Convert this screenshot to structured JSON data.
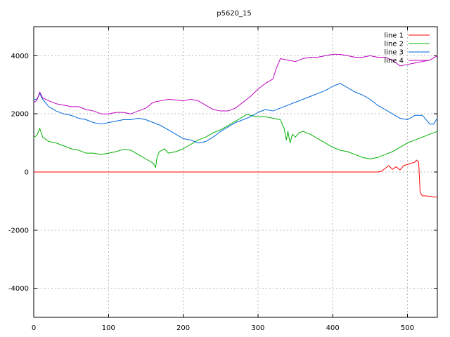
{
  "chart_data": {
    "type": "line",
    "title": "p5620_15",
    "xlabel": "",
    "ylabel": "",
    "xlim": [
      0,
      540
    ],
    "ylim": [
      -5000,
      5000
    ],
    "x_ticks": [
      0,
      100,
      200,
      300,
      400,
      500
    ],
    "y_ticks": [
      -4000,
      -2000,
      0,
      2000,
      4000
    ],
    "grid": true,
    "legend_position": "top-right",
    "series": [
      {
        "name": "line 1",
        "color": "#ff0000",
        "points": [
          [
            0,
            0
          ],
          [
            460,
            0
          ],
          [
            465,
            20
          ],
          [
            470,
            120
          ],
          [
            475,
            220
          ],
          [
            480,
            90
          ],
          [
            485,
            180
          ],
          [
            490,
            70
          ],
          [
            495,
            220
          ],
          [
            500,
            260
          ],
          [
            505,
            300
          ],
          [
            510,
            340
          ],
          [
            512,
            410
          ],
          [
            515,
            350
          ],
          [
            517,
            -700
          ],
          [
            520,
            -820
          ],
          [
            525,
            -820
          ],
          [
            530,
            -840
          ],
          [
            535,
            -860
          ],
          [
            540,
            -860
          ]
        ]
      },
      {
        "name": "line 2",
        "color": "#00b000",
        "points": [
          [
            0,
            1200
          ],
          [
            4,
            1250
          ],
          [
            8,
            1500
          ],
          [
            12,
            1200
          ],
          [
            20,
            1050
          ],
          [
            30,
            1000
          ],
          [
            40,
            900
          ],
          [
            50,
            800
          ],
          [
            60,
            750
          ],
          [
            70,
            650
          ],
          [
            80,
            650
          ],
          [
            90,
            600
          ],
          [
            100,
            650
          ],
          [
            110,
            700
          ],
          [
            120,
            780
          ],
          [
            130,
            750
          ],
          [
            140,
            600
          ],
          [
            150,
            450
          ],
          [
            160,
            300
          ],
          [
            163,
            150
          ],
          [
            165,
            500
          ],
          [
            168,
            700
          ],
          [
            175,
            800
          ],
          [
            180,
            650
          ],
          [
            190,
            700
          ],
          [
            200,
            800
          ],
          [
            210,
            950
          ],
          [
            220,
            1100
          ],
          [
            230,
            1200
          ],
          [
            240,
            1350
          ],
          [
            250,
            1450
          ],
          [
            260,
            1600
          ],
          [
            270,
            1750
          ],
          [
            280,
            1900
          ],
          [
            285,
            1980
          ],
          [
            290,
            1950
          ],
          [
            300,
            1900
          ],
          [
            310,
            1900
          ],
          [
            320,
            1850
          ],
          [
            330,
            1800
          ],
          [
            335,
            1500
          ],
          [
            338,
            1100
          ],
          [
            340,
            1400
          ],
          [
            343,
            1000
          ],
          [
            346,
            1300
          ],
          [
            350,
            1200
          ],
          [
            355,
            1350
          ],
          [
            360,
            1400
          ],
          [
            370,
            1300
          ],
          [
            380,
            1150
          ],
          [
            390,
            1000
          ],
          [
            400,
            850
          ],
          [
            410,
            750
          ],
          [
            420,
            700
          ],
          [
            430,
            600
          ],
          [
            440,
            500
          ],
          [
            450,
            450
          ],
          [
            460,
            500
          ],
          [
            470,
            600
          ],
          [
            480,
            700
          ],
          [
            490,
            850
          ],
          [
            500,
            1000
          ],
          [
            510,
            1100
          ],
          [
            520,
            1200
          ],
          [
            530,
            1300
          ],
          [
            540,
            1400
          ]
        ]
      },
      {
        "name": "line 3",
        "color": "#0066dd",
        "points": [
          [
            0,
            2500
          ],
          [
            4,
            2500
          ],
          [
            8,
            2700
          ],
          [
            12,
            2500
          ],
          [
            20,
            2250
          ],
          [
            30,
            2100
          ],
          [
            40,
            2000
          ],
          [
            50,
            1950
          ],
          [
            60,
            1850
          ],
          [
            70,
            1800
          ],
          [
            80,
            1700
          ],
          [
            90,
            1650
          ],
          [
            100,
            1700
          ],
          [
            110,
            1750
          ],
          [
            120,
            1800
          ],
          [
            130,
            1800
          ],
          [
            140,
            1850
          ],
          [
            150,
            1800
          ],
          [
            160,
            1700
          ],
          [
            170,
            1600
          ],
          [
            180,
            1450
          ],
          [
            190,
            1300
          ],
          [
            200,
            1150
          ],
          [
            210,
            1100
          ],
          [
            220,
            1000
          ],
          [
            230,
            1050
          ],
          [
            240,
            1200
          ],
          [
            250,
            1400
          ],
          [
            260,
            1550
          ],
          [
            270,
            1700
          ],
          [
            280,
            1800
          ],
          [
            290,
            1900
          ],
          [
            300,
            2050
          ],
          [
            310,
            2150
          ],
          [
            320,
            2100
          ],
          [
            330,
            2200
          ],
          [
            340,
            2300
          ],
          [
            350,
            2400
          ],
          [
            360,
            2500
          ],
          [
            370,
            2600
          ],
          [
            380,
            2700
          ],
          [
            390,
            2800
          ],
          [
            400,
            2950
          ],
          [
            410,
            3050
          ],
          [
            420,
            2900
          ],
          [
            430,
            2750
          ],
          [
            440,
            2650
          ],
          [
            450,
            2500
          ],
          [
            460,
            2300
          ],
          [
            470,
            2150
          ],
          [
            480,
            2000
          ],
          [
            490,
            1850
          ],
          [
            500,
            1800
          ],
          [
            510,
            1950
          ],
          [
            520,
            1950
          ],
          [
            525,
            1800
          ],
          [
            530,
            1650
          ],
          [
            535,
            1650
          ],
          [
            540,
            1850
          ]
        ]
      },
      {
        "name": "line 4",
        "color": "#c000c0",
        "points": [
          [
            0,
            2400
          ],
          [
            4,
            2450
          ],
          [
            8,
            2750
          ],
          [
            12,
            2550
          ],
          [
            20,
            2450
          ],
          [
            30,
            2350
          ],
          [
            40,
            2300
          ],
          [
            50,
            2250
          ],
          [
            60,
            2250
          ],
          [
            70,
            2150
          ],
          [
            80,
            2100
          ],
          [
            90,
            2000
          ],
          [
            100,
            2000
          ],
          [
            110,
            2050
          ],
          [
            120,
            2050
          ],
          [
            130,
            2000
          ],
          [
            140,
            2100
          ],
          [
            150,
            2200
          ],
          [
            160,
            2400
          ],
          [
            170,
            2450
          ],
          [
            180,
            2500
          ],
          [
            190,
            2480
          ],
          [
            200,
            2450
          ],
          [
            210,
            2500
          ],
          [
            220,
            2450
          ],
          [
            230,
            2300
          ],
          [
            240,
            2150
          ],
          [
            250,
            2100
          ],
          [
            260,
            2100
          ],
          [
            270,
            2200
          ],
          [
            280,
            2400
          ],
          [
            290,
            2600
          ],
          [
            300,
            2850
          ],
          [
            310,
            3050
          ],
          [
            320,
            3200
          ],
          [
            325,
            3600
          ],
          [
            330,
            3900
          ],
          [
            340,
            3850
          ],
          [
            350,
            3800
          ],
          [
            360,
            3900
          ],
          [
            370,
            3950
          ],
          [
            380,
            3950
          ],
          [
            390,
            4000
          ],
          [
            400,
            4050
          ],
          [
            410,
            4050
          ],
          [
            420,
            4000
          ],
          [
            430,
            3950
          ],
          [
            440,
            3950
          ],
          [
            450,
            4000
          ],
          [
            460,
            3950
          ],
          [
            470,
            3950
          ],
          [
            480,
            3850
          ],
          [
            490,
            3650
          ],
          [
            500,
            3700
          ],
          [
            510,
            3750
          ],
          [
            520,
            3800
          ],
          [
            530,
            3850
          ],
          [
            540,
            4000
          ]
        ]
      }
    ]
  }
}
